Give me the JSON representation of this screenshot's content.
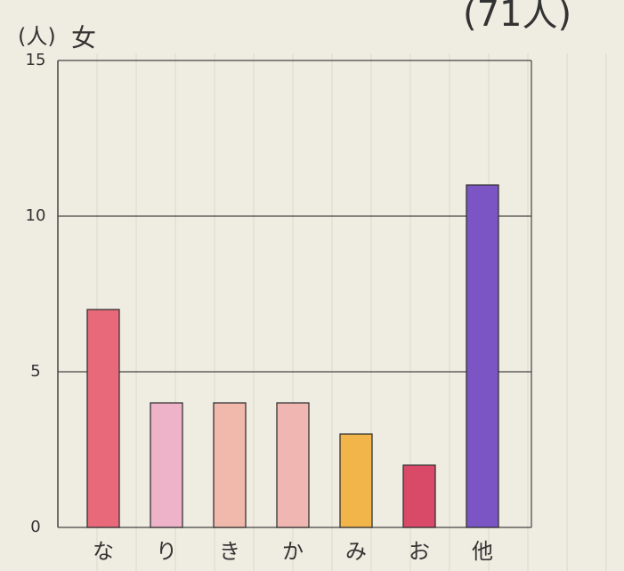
{
  "chart_data": {
    "type": "bar",
    "title": "女",
    "y_label": "(人)",
    "annotation": "(71人)",
    "categories": [
      "な",
      "り",
      "き",
      "か",
      "み",
      "お",
      "他"
    ],
    "values": [
      7,
      4,
      4,
      4,
      3,
      2,
      11
    ],
    "colors": [
      "#e8697a",
      "#efb3c9",
      "#f1b8ac",
      "#f0b7b2",
      "#f2b54a",
      "#d84a68",
      "#7b55c4"
    ],
    "ylim": [
      0,
      15
    ],
    "yticks": [
      0,
      5,
      10,
      15
    ],
    "grid": true
  }
}
